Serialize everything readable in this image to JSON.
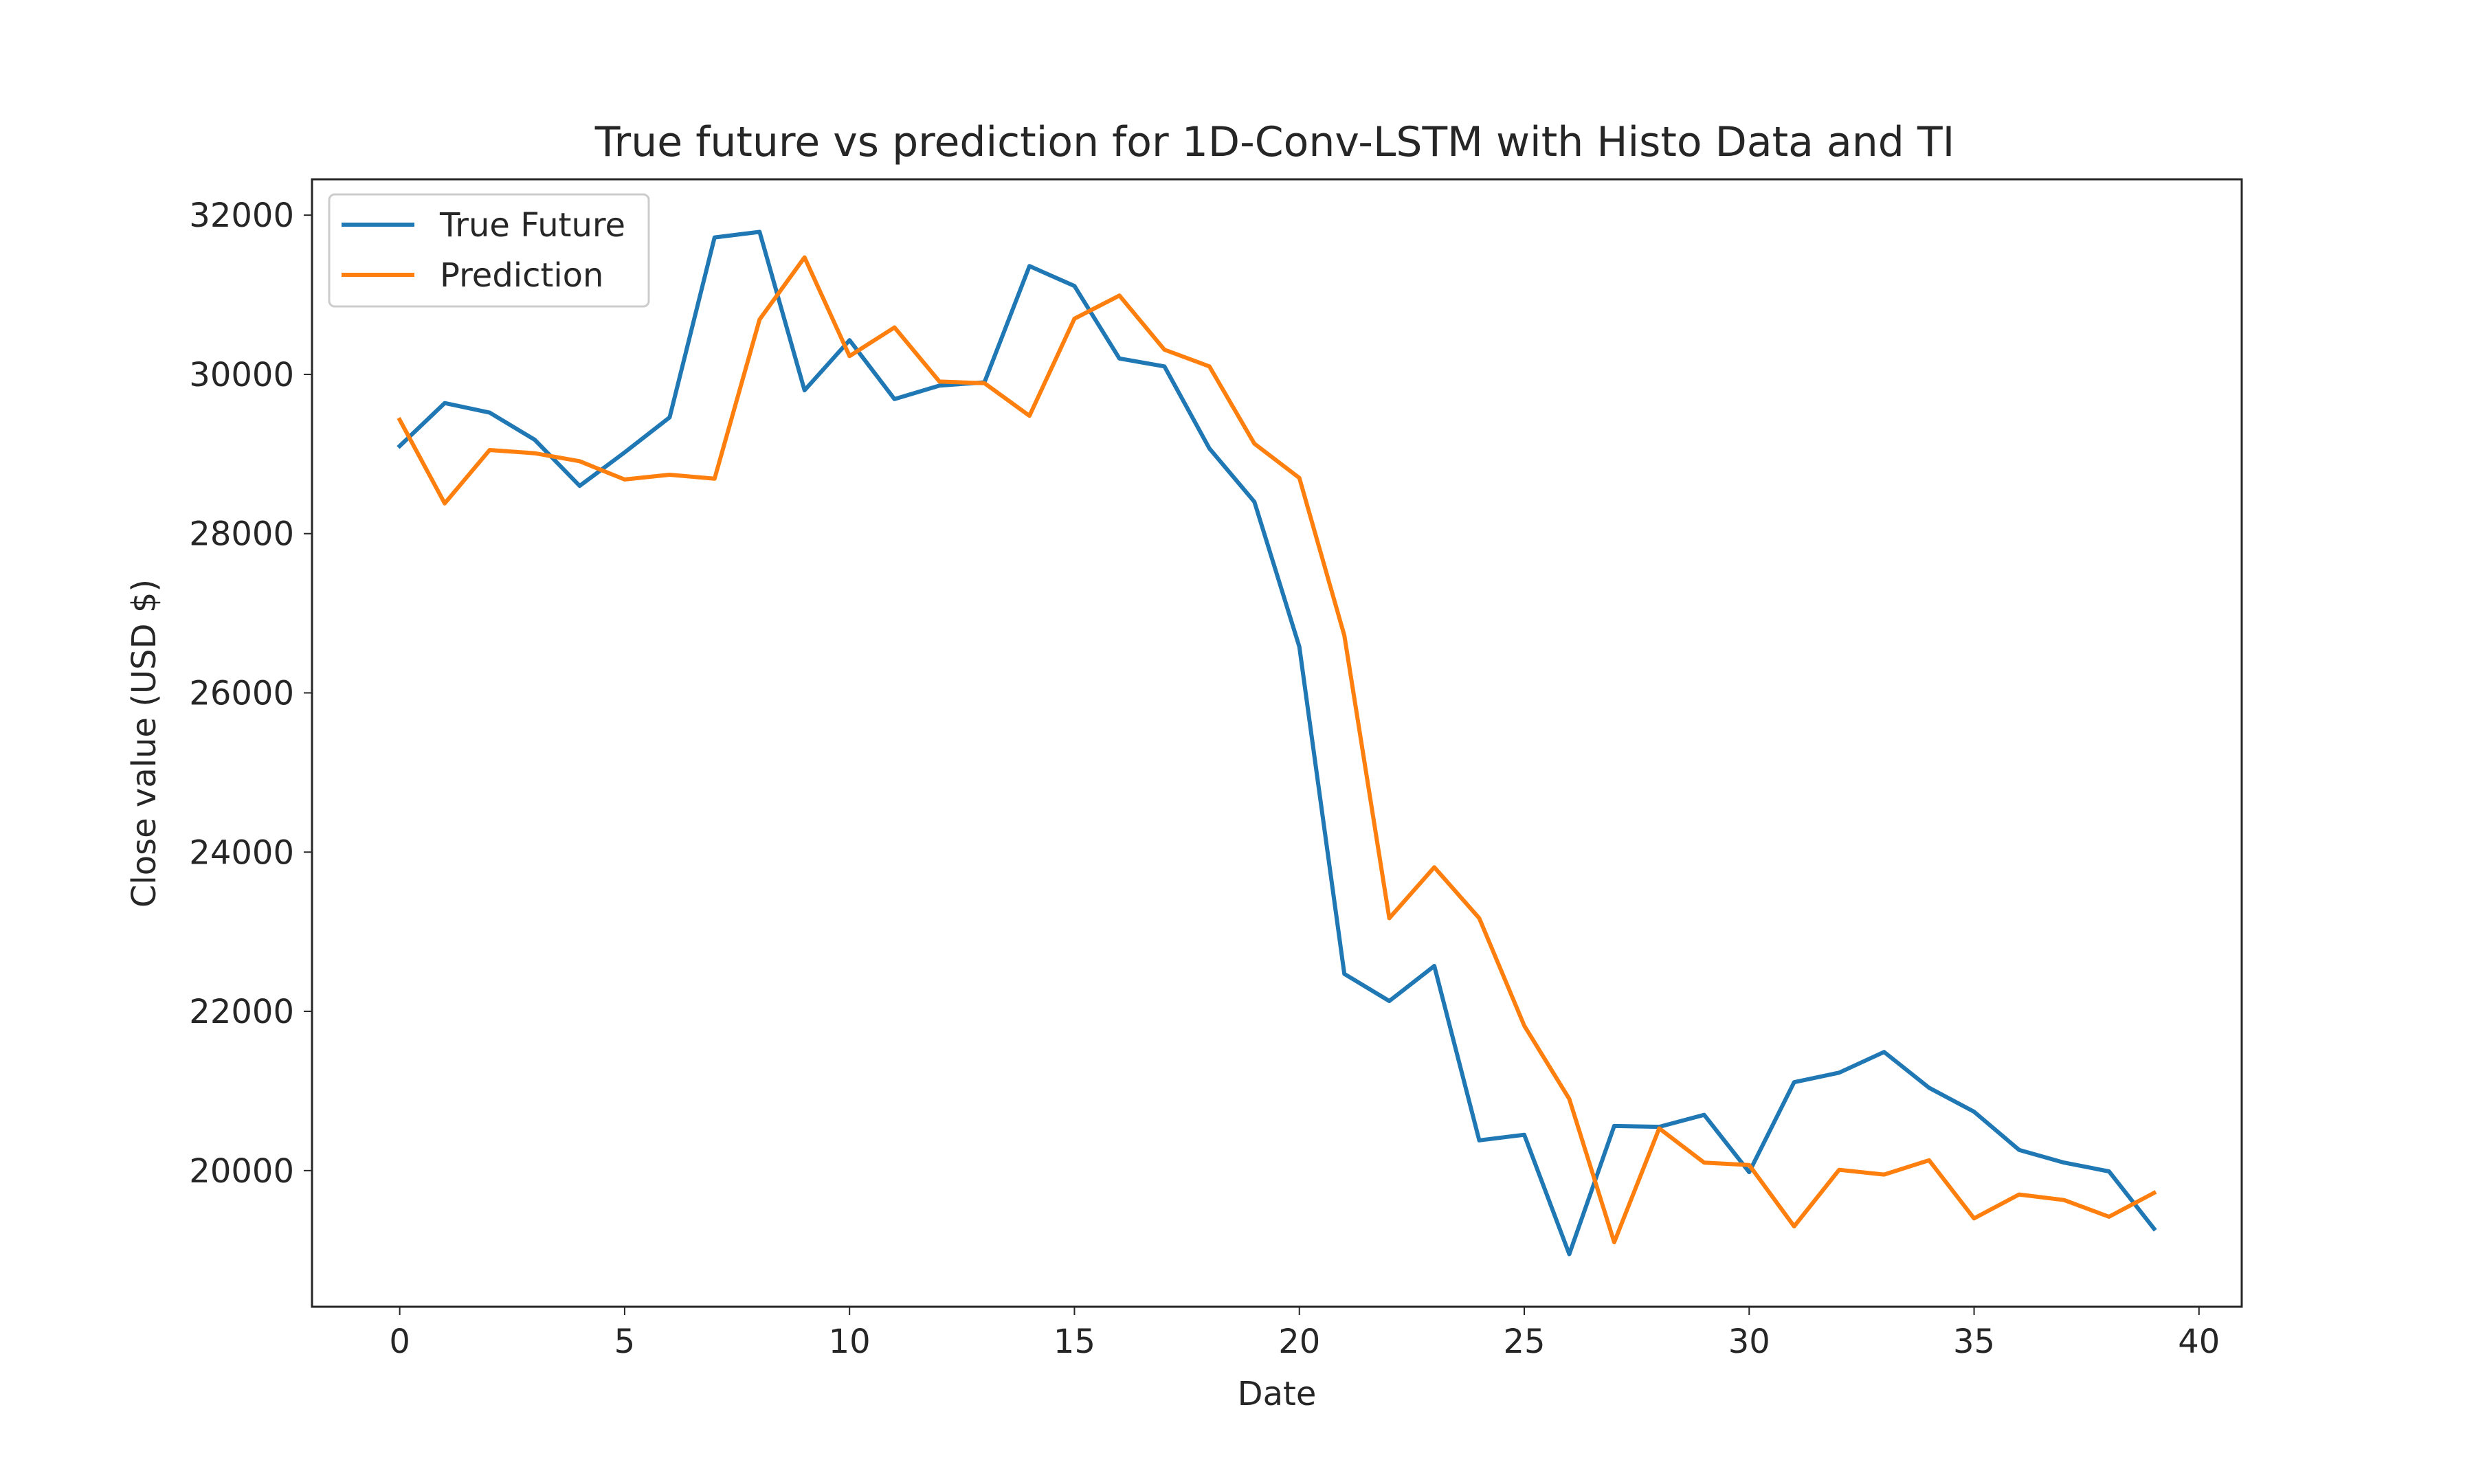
{
  "chart_data": {
    "type": "line",
    "title": "True future vs prediction for 1D-Conv-LSTM with Histo Data and TI",
    "xlabel": "Date",
    "ylabel": "Close value (USD $)",
    "xlim": [
      -1.95,
      40.95
    ],
    "ylim": [
      18290,
      32450
    ],
    "xticks": [
      0,
      5,
      10,
      15,
      20,
      25,
      30,
      35,
      40
    ],
    "yticks": [
      20000,
      22000,
      24000,
      26000,
      28000,
      30000,
      32000
    ],
    "grid": false,
    "legend": "top-left",
    "x": [
      0,
      1,
      2,
      3,
      4,
      5,
      6,
      7,
      8,
      9,
      10,
      11,
      12,
      13,
      14,
      15,
      16,
      17,
      18,
      19,
      20,
      21,
      22,
      23,
      24,
      25,
      26,
      27,
      28,
      29,
      30,
      31,
      32,
      33,
      34,
      35,
      36,
      37,
      38,
      39
    ],
    "series": [
      {
        "name": "True Future",
        "color": "#1f77b4",
        "values": [
          29100,
          29640,
          29520,
          29180,
          28600,
          29020,
          29460,
          31720,
          31790,
          29800,
          30430,
          29690,
          29860,
          29900,
          31360,
          31110,
          30200,
          30100,
          29070,
          28400,
          26580,
          22470,
          22130,
          22570,
          20380,
          20450,
          18950,
          20560,
          20550,
          20700,
          19980,
          21110,
          21230,
          21490,
          21040,
          20740,
          20260,
          20100,
          19990,
          19270
        ]
      },
      {
        "name": "Prediction",
        "color": "#ff7f0e",
        "values": [
          29430,
          28380,
          29050,
          29010,
          28910,
          28680,
          28740,
          28690,
          30690,
          31470,
          30230,
          30590,
          29910,
          29890,
          29480,
          30700,
          30990,
          30310,
          30100,
          29130,
          28700,
          26720,
          23170,
          23810,
          23170,
          21820,
          20900,
          19100,
          20530,
          20100,
          20070,
          19300,
          20010,
          19950,
          20130,
          19400,
          19700,
          19630,
          19420,
          19720
        ]
      }
    ]
  }
}
